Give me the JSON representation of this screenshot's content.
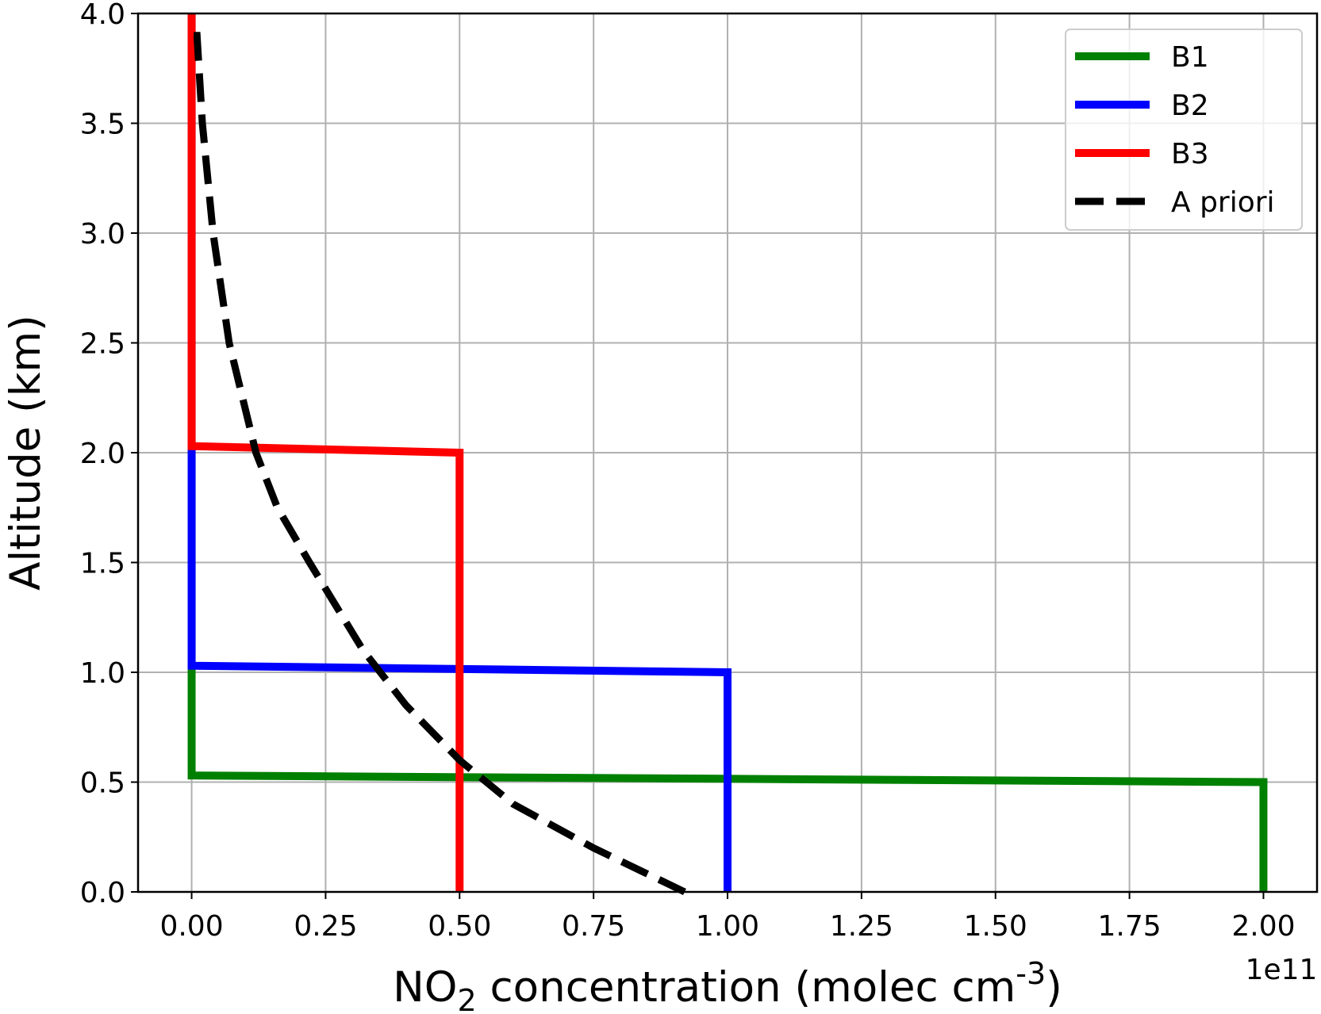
{
  "chart_data": {
    "type": "line",
    "x_label": [
      "NO",
      "2",
      " concentration (molec cm",
      "-3",
      ")"
    ],
    "x_offset_label": "1e11",
    "y_label": "Altitude (km)",
    "series": [
      {
        "name": "B1",
        "color": "#008000",
        "x": [
          0,
          0,
          2.0,
          2.0
        ],
        "values": [
          4.0,
          0.53,
          0.5,
          0
        ],
        "dashed": false
      },
      {
        "name": "B2",
        "color": "#0000ff",
        "x": [
          0,
          0,
          1.0,
          1.0
        ],
        "values": [
          4.0,
          1.03,
          1.0,
          0
        ],
        "dashed": false
      },
      {
        "name": "B3",
        "color": "#ff0000",
        "x": [
          0,
          0,
          0.5,
          0.5
        ],
        "values": [
          4.0,
          2.03,
          2.0,
          0
        ],
        "dashed": false
      },
      {
        "name": "A priori",
        "color": "#000000",
        "x": [
          0.92,
          0.75,
          0.6,
          0.5,
          0.4,
          0.32,
          0.22,
          0.16,
          0.12,
          0.07,
          0.04,
          0.02,
          0.01,
          0.0
        ],
        "values": [
          0,
          0.2,
          0.4,
          0.6,
          0.85,
          1.1,
          1.5,
          1.75,
          2.0,
          2.5,
          3.0,
          3.5,
          3.9,
          3.9
        ],
        "dashed": true
      }
    ],
    "xlim": [
      -0.1,
      2.1
    ],
    "ylim": [
      0,
      4.0
    ],
    "xticks": [
      {
        "value": 0,
        "label": "0.00"
      },
      0.25,
      {
        "value": 0.5,
        "label": "0.50"
      },
      0.75,
      {
        "value": 1,
        "label": "1.00"
      },
      1.25,
      {
        "value": 1.5,
        "label": "1.50"
      },
      1.75,
      {
        "value": 2,
        "label": "2.00"
      }
    ],
    "yticks": [
      {
        "value": 0,
        "label": "0.0"
      },
      0.5,
      {
        "value": 1,
        "label": "1.0"
      },
      1.5,
      {
        "value": 2,
        "label": "2.0"
      },
      2.5,
      {
        "value": 3,
        "label": "3.0"
      },
      3.5,
      {
        "value": 4,
        "label": "4.0"
      }
    ],
    "grid": true,
    "legend": "upper right"
  }
}
